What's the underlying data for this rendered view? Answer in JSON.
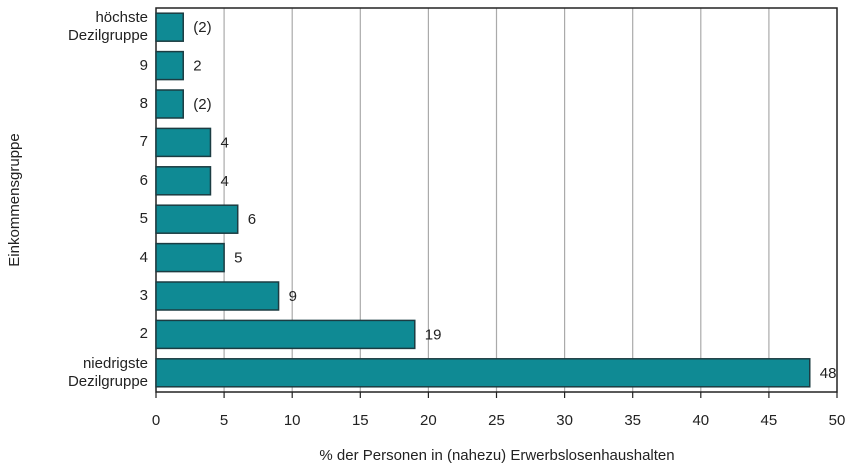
{
  "chart_data": {
    "type": "barh",
    "categories": [
      "höchste Dezilgruppe",
      "9",
      "8",
      "7",
      "6",
      "5",
      "4",
      "3",
      "2",
      "niedrigste Dezilgruppe"
    ],
    "values": [
      2,
      2,
      2,
      4,
      4,
      6,
      5,
      9,
      19,
      48
    ],
    "value_labels": [
      "(2)",
      "2",
      "(2)",
      "4",
      "4",
      "6",
      "5",
      "9",
      "19",
      "48"
    ],
    "color": "#0f8a94",
    "xlim": [
      0,
      50
    ],
    "xticks": [
      0,
      5,
      10,
      15,
      20,
      25,
      30,
      35,
      40,
      45,
      50
    ],
    "grid": true,
    "xlabel": "% der Personen in (nahezu) Erwerbslosenhaushalten",
    "ylabel": "Einkommensgruppe"
  }
}
